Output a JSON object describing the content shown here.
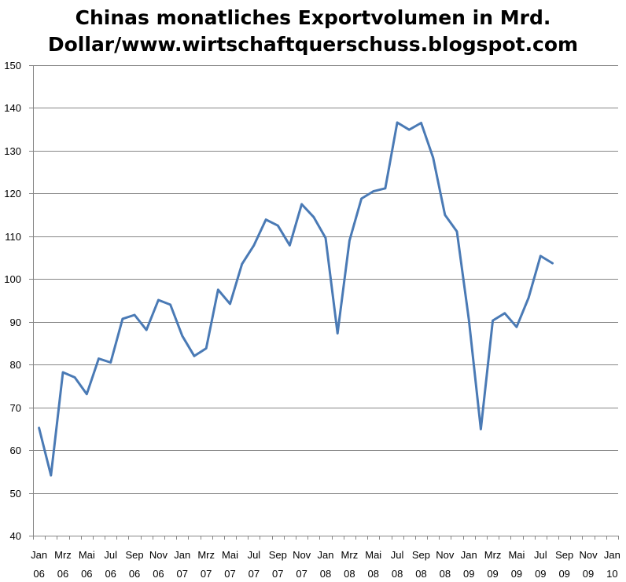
{
  "chart_data": {
    "type": "line",
    "title": "Chinas monatliches Exportvolumen in Mrd. Dollar/www.wirtschaftquerschuss.blogspot.com",
    "title_lines": [
      "Chinas monatliches Exportvolumen in Mrd.",
      "Dollar/www.wirtschaftquerschuss.blogspot.com"
    ],
    "xlabel": "",
    "ylabel": "",
    "ylim": [
      40,
      150
    ],
    "yticks": [
      40,
      50,
      60,
      70,
      80,
      90,
      100,
      110,
      120,
      130,
      140,
      150
    ],
    "grid": true,
    "legend": "none",
    "x_tick_labels": [
      {
        "month": "Jan",
        "year": "06"
      },
      {
        "month": "Mrz",
        "year": "06"
      },
      {
        "month": "Mai",
        "year": "06"
      },
      {
        "month": "Jul",
        "year": "06"
      },
      {
        "month": "Sep",
        "year": "06"
      },
      {
        "month": "Nov",
        "year": "06"
      },
      {
        "month": "Jan",
        "year": "07"
      },
      {
        "month": "Mrz",
        "year": "07"
      },
      {
        "month": "Mai",
        "year": "07"
      },
      {
        "month": "Jul",
        "year": "07"
      },
      {
        "month": "Sep",
        "year": "07"
      },
      {
        "month": "Nov",
        "year": "07"
      },
      {
        "month": "Jan",
        "year": "08"
      },
      {
        "month": "Mrz",
        "year": "08"
      },
      {
        "month": "Mai",
        "year": "08"
      },
      {
        "month": "Jul",
        "year": "08"
      },
      {
        "month": "Sep",
        "year": "08"
      },
      {
        "month": "Nov",
        "year": "08"
      },
      {
        "month": "Jan",
        "year": "09"
      },
      {
        "month": "Mrz",
        "year": "09"
      },
      {
        "month": "Mai",
        "year": "09"
      },
      {
        "month": "Jul",
        "year": "09"
      },
      {
        "month": "Sep",
        "year": "09"
      },
      {
        "month": "Nov",
        "year": "09"
      },
      {
        "month": "Jan",
        "year": "10"
      }
    ],
    "series": [
      {
        "name": "Exportvolumen",
        "color": "#4a7ab5",
        "values": [
          65.2,
          54.1,
          78.2,
          77.0,
          73.1,
          81.4,
          80.5,
          90.7,
          91.6,
          88.1,
          95.1,
          94.0,
          86.7,
          82.0,
          83.8,
          97.5,
          94.2,
          103.5,
          107.9,
          113.9,
          112.5,
          107.9,
          117.5,
          114.5,
          109.6,
          87.3,
          109.0,
          118.8,
          120.5,
          121.2,
          136.6,
          134.9,
          136.5,
          128.4,
          115.0,
          111.1,
          90.5,
          64.9,
          90.3,
          92.0,
          88.8,
          95.6,
          105.4,
          103.7
        ]
      }
    ]
  }
}
